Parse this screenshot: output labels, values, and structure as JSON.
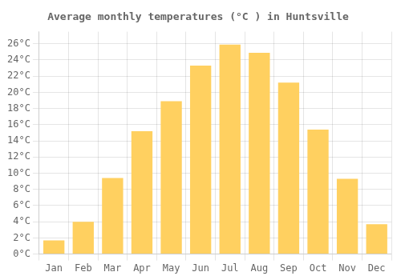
{
  "chart_data": {
    "type": "bar",
    "title": "Average monthly temperatures (°C ) in Huntsville",
    "categories": [
      "Jan",
      "Feb",
      "Mar",
      "Apr",
      "May",
      "Jun",
      "Jul",
      "Aug",
      "Sep",
      "Oct",
      "Nov",
      "Dec"
    ],
    "values": [
      1.7,
      4.0,
      9.4,
      15.2,
      18.9,
      23.3,
      25.9,
      24.9,
      21.2,
      15.4,
      9.3,
      3.7
    ],
    "color": "#FFD060",
    "ylim": [
      0,
      27.5
    ],
    "yticks": [
      {
        "value": 0,
        "label": "0°C"
      },
      {
        "value": 2,
        "label": "2°C"
      },
      {
        "value": 4,
        "label": "4°C"
      },
      {
        "value": 6,
        "label": "6°C"
      },
      {
        "value": 8,
        "label": "8°C"
      },
      {
        "value": 10,
        "label": "10°C"
      },
      {
        "value": 12,
        "label": "12°C"
      },
      {
        "value": 14,
        "label": "14°C"
      },
      {
        "value": 16,
        "label": "16°C"
      },
      {
        "value": 18,
        "label": "18°C"
      },
      {
        "value": 20,
        "label": "20°C"
      },
      {
        "value": 22,
        "label": "22°C"
      },
      {
        "value": 24,
        "label": "24°C"
      },
      {
        "value": 26,
        "label": "26°C"
      }
    ],
    "grid": true
  }
}
